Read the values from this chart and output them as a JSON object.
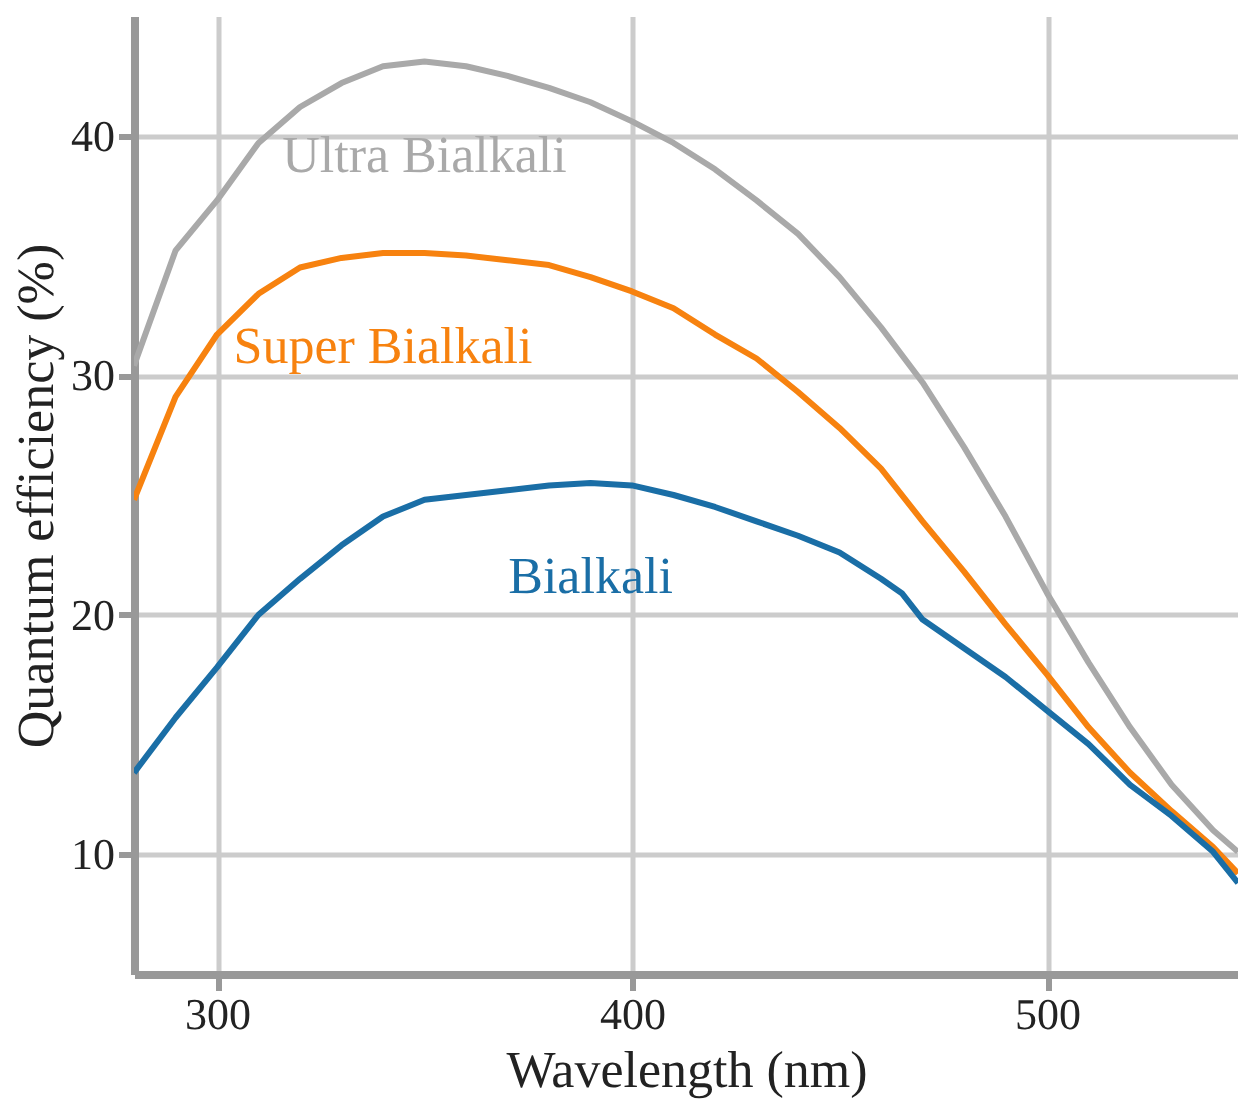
{
  "chart_data": {
    "type": "line",
    "xlabel": "Wavelength (nm)",
    "ylabel": "Quantum efficiency (%)",
    "xlim": [
      280,
      546
    ],
    "xticks": [
      300,
      400,
      500
    ],
    "ylim": [
      5,
      45
    ],
    "yticks": [
      10,
      20,
      30,
      40
    ],
    "grid": true,
    "legend": false,
    "marker": "none",
    "line_style": "solid",
    "series": [
      {
        "name": "Ultra Bialkali",
        "color": "#a9a9a9",
        "x": [
          280,
          290,
          300,
          310,
          320,
          330,
          340,
          350,
          360,
          370,
          380,
          390,
          400,
          410,
          420,
          430,
          440,
          450,
          460,
          470,
          480,
          490,
          500,
          510,
          520,
          530,
          540,
          546
        ],
        "values": [
          30.4,
          35.2,
          37.3,
          39.7,
          41.2,
          42.2,
          42.9,
          43.1,
          42.9,
          42.5,
          42.0,
          41.4,
          40.6,
          39.7,
          38.6,
          37.3,
          35.9,
          34.1,
          32.0,
          29.7,
          27.0,
          24.1,
          20.9,
          18.0,
          15.3,
          12.9,
          11.0,
          10.1
        ]
      },
      {
        "name": "Super Bialkali",
        "color": "#f7820f",
        "x": [
          280,
          290,
          300,
          310,
          320,
          330,
          340,
          350,
          360,
          370,
          380,
          390,
          400,
          410,
          420,
          430,
          440,
          450,
          460,
          470,
          480,
          490,
          500,
          510,
          520,
          530,
          540,
          546
        ],
        "values": [
          24.8,
          29.1,
          31.7,
          33.4,
          34.5,
          34.9,
          35.1,
          35.1,
          35.0,
          34.8,
          34.6,
          34.1,
          33.5,
          32.8,
          31.7,
          30.7,
          29.3,
          27.8,
          26.1,
          23.9,
          21.8,
          19.6,
          17.5,
          15.3,
          13.4,
          11.8,
          10.3,
          9.2
        ]
      },
      {
        "name": "Bialkali",
        "color": "#1a6ea6",
        "x": [
          280,
          290,
          300,
          310,
          320,
          330,
          340,
          350,
          360,
          370,
          380,
          390,
          400,
          410,
          420,
          430,
          440,
          450,
          460,
          465,
          470,
          480,
          490,
          500,
          510,
          520,
          530,
          540,
          546
        ],
        "values": [
          13.4,
          15.7,
          17.8,
          20.0,
          21.5,
          22.9,
          24.1,
          24.8,
          25.0,
          25.2,
          25.4,
          25.5,
          25.4,
          25.0,
          24.5,
          23.9,
          23.3,
          22.6,
          21.5,
          20.9,
          19.8,
          18.6,
          17.4,
          16.0,
          14.6,
          12.9,
          11.6,
          10.1,
          8.8
        ]
      }
    ]
  }
}
